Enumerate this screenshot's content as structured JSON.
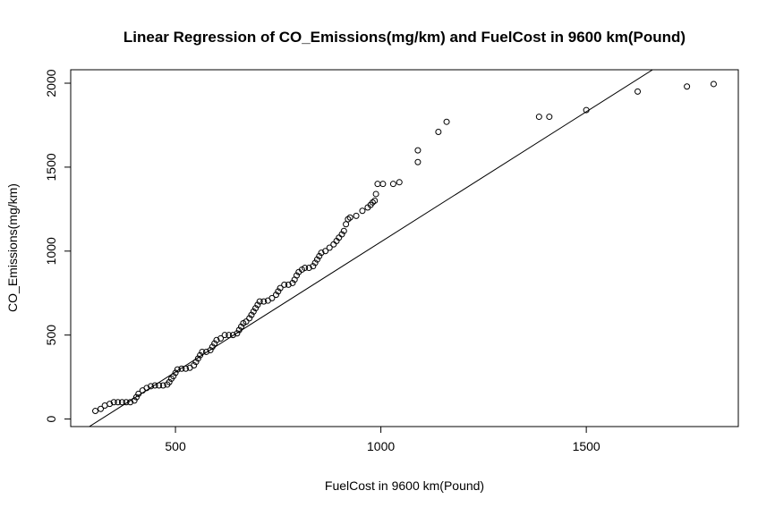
{
  "chart_data": {
    "type": "scatter",
    "title": "Linear Regression of CO_Emissions(mg/km) and FuelCost in 9600 km(Pound)",
    "xlabel": "FuelCost in 9600 km(Pound)",
    "ylabel": "CO_Emissions(mg/km)",
    "xlim": [
      245,
      1870
    ],
    "ylim": [
      -45,
      2080
    ],
    "xticks": [
      500,
      1000,
      1500
    ],
    "yticks": [
      0,
      500,
      1000,
      1500,
      2000
    ],
    "grid": false,
    "legend": "none",
    "colors": {
      "points": "#000000",
      "line": "#000000",
      "axes": "#000000",
      "background": "#ffffff"
    },
    "regression_line": {
      "intercept": -495,
      "slope": 1.55
    },
    "series": [
      {
        "marker": "open-circle",
        "points": [
          [
            305,
            48
          ],
          [
            318,
            60
          ],
          [
            328,
            80
          ],
          [
            340,
            90
          ],
          [
            350,
            100
          ],
          [
            360,
            100
          ],
          [
            370,
            100
          ],
          [
            380,
            100
          ],
          [
            390,
            100
          ],
          [
            400,
            110
          ],
          [
            405,
            130
          ],
          [
            410,
            150
          ],
          [
            420,
            170
          ],
          [
            430,
            185
          ],
          [
            440,
            195
          ],
          [
            450,
            200
          ],
          [
            460,
            200
          ],
          [
            470,
            200
          ],
          [
            480,
            205
          ],
          [
            485,
            220
          ],
          [
            490,
            240
          ],
          [
            495,
            255
          ],
          [
            500,
            275
          ],
          [
            505,
            295
          ],
          [
            515,
            300
          ],
          [
            525,
            300
          ],
          [
            535,
            305
          ],
          [
            545,
            320
          ],
          [
            550,
            340
          ],
          [
            555,
            360
          ],
          [
            560,
            380
          ],
          [
            565,
            400
          ],
          [
            575,
            400
          ],
          [
            585,
            410
          ],
          [
            590,
            430
          ],
          [
            595,
            450
          ],
          [
            600,
            470
          ],
          [
            610,
            480
          ],
          [
            620,
            500
          ],
          [
            630,
            500
          ],
          [
            640,
            500
          ],
          [
            650,
            510
          ],
          [
            655,
            530
          ],
          [
            660,
            550
          ],
          [
            665,
            570
          ],
          [
            672,
            580
          ],
          [
            680,
            600
          ],
          [
            685,
            620
          ],
          [
            690,
            640
          ],
          [
            695,
            660
          ],
          [
            700,
            680
          ],
          [
            705,
            700
          ],
          [
            715,
            700
          ],
          [
            725,
            705
          ],
          [
            735,
            720
          ],
          [
            745,
            740
          ],
          [
            750,
            760
          ],
          [
            755,
            780
          ],
          [
            765,
            800
          ],
          [
            775,
            800
          ],
          [
            785,
            810
          ],
          [
            790,
            830
          ],
          [
            795,
            855
          ],
          [
            800,
            875
          ],
          [
            808,
            890
          ],
          [
            815,
            900
          ],
          [
            825,
            900
          ],
          [
            835,
            910
          ],
          [
            840,
            930
          ],
          [
            845,
            950
          ],
          [
            850,
            970
          ],
          [
            855,
            990
          ],
          [
            865,
            1000
          ],
          [
            875,
            1020
          ],
          [
            885,
            1040
          ],
          [
            892,
            1060
          ],
          [
            898,
            1080
          ],
          [
            905,
            1100
          ],
          [
            910,
            1120
          ],
          [
            915,
            1160
          ],
          [
            920,
            1190
          ],
          [
            925,
            1200
          ],
          [
            940,
            1210
          ],
          [
            955,
            1240
          ],
          [
            968,
            1260
          ],
          [
            975,
            1275
          ],
          [
            980,
            1290
          ],
          [
            985,
            1300
          ],
          [
            988,
            1340
          ],
          [
            992,
            1400
          ],
          [
            1005,
            1400
          ],
          [
            1030,
            1400
          ],
          [
            1045,
            1410
          ],
          [
            1090,
            1530
          ],
          [
            1090,
            1600
          ],
          [
            1140,
            1710
          ],
          [
            1160,
            1770
          ],
          [
            1385,
            1800
          ],
          [
            1410,
            1800
          ],
          [
            1500,
            1840
          ],
          [
            1625,
            1950
          ],
          [
            1745,
            1980
          ],
          [
            1810,
            1995
          ]
        ]
      }
    ]
  }
}
